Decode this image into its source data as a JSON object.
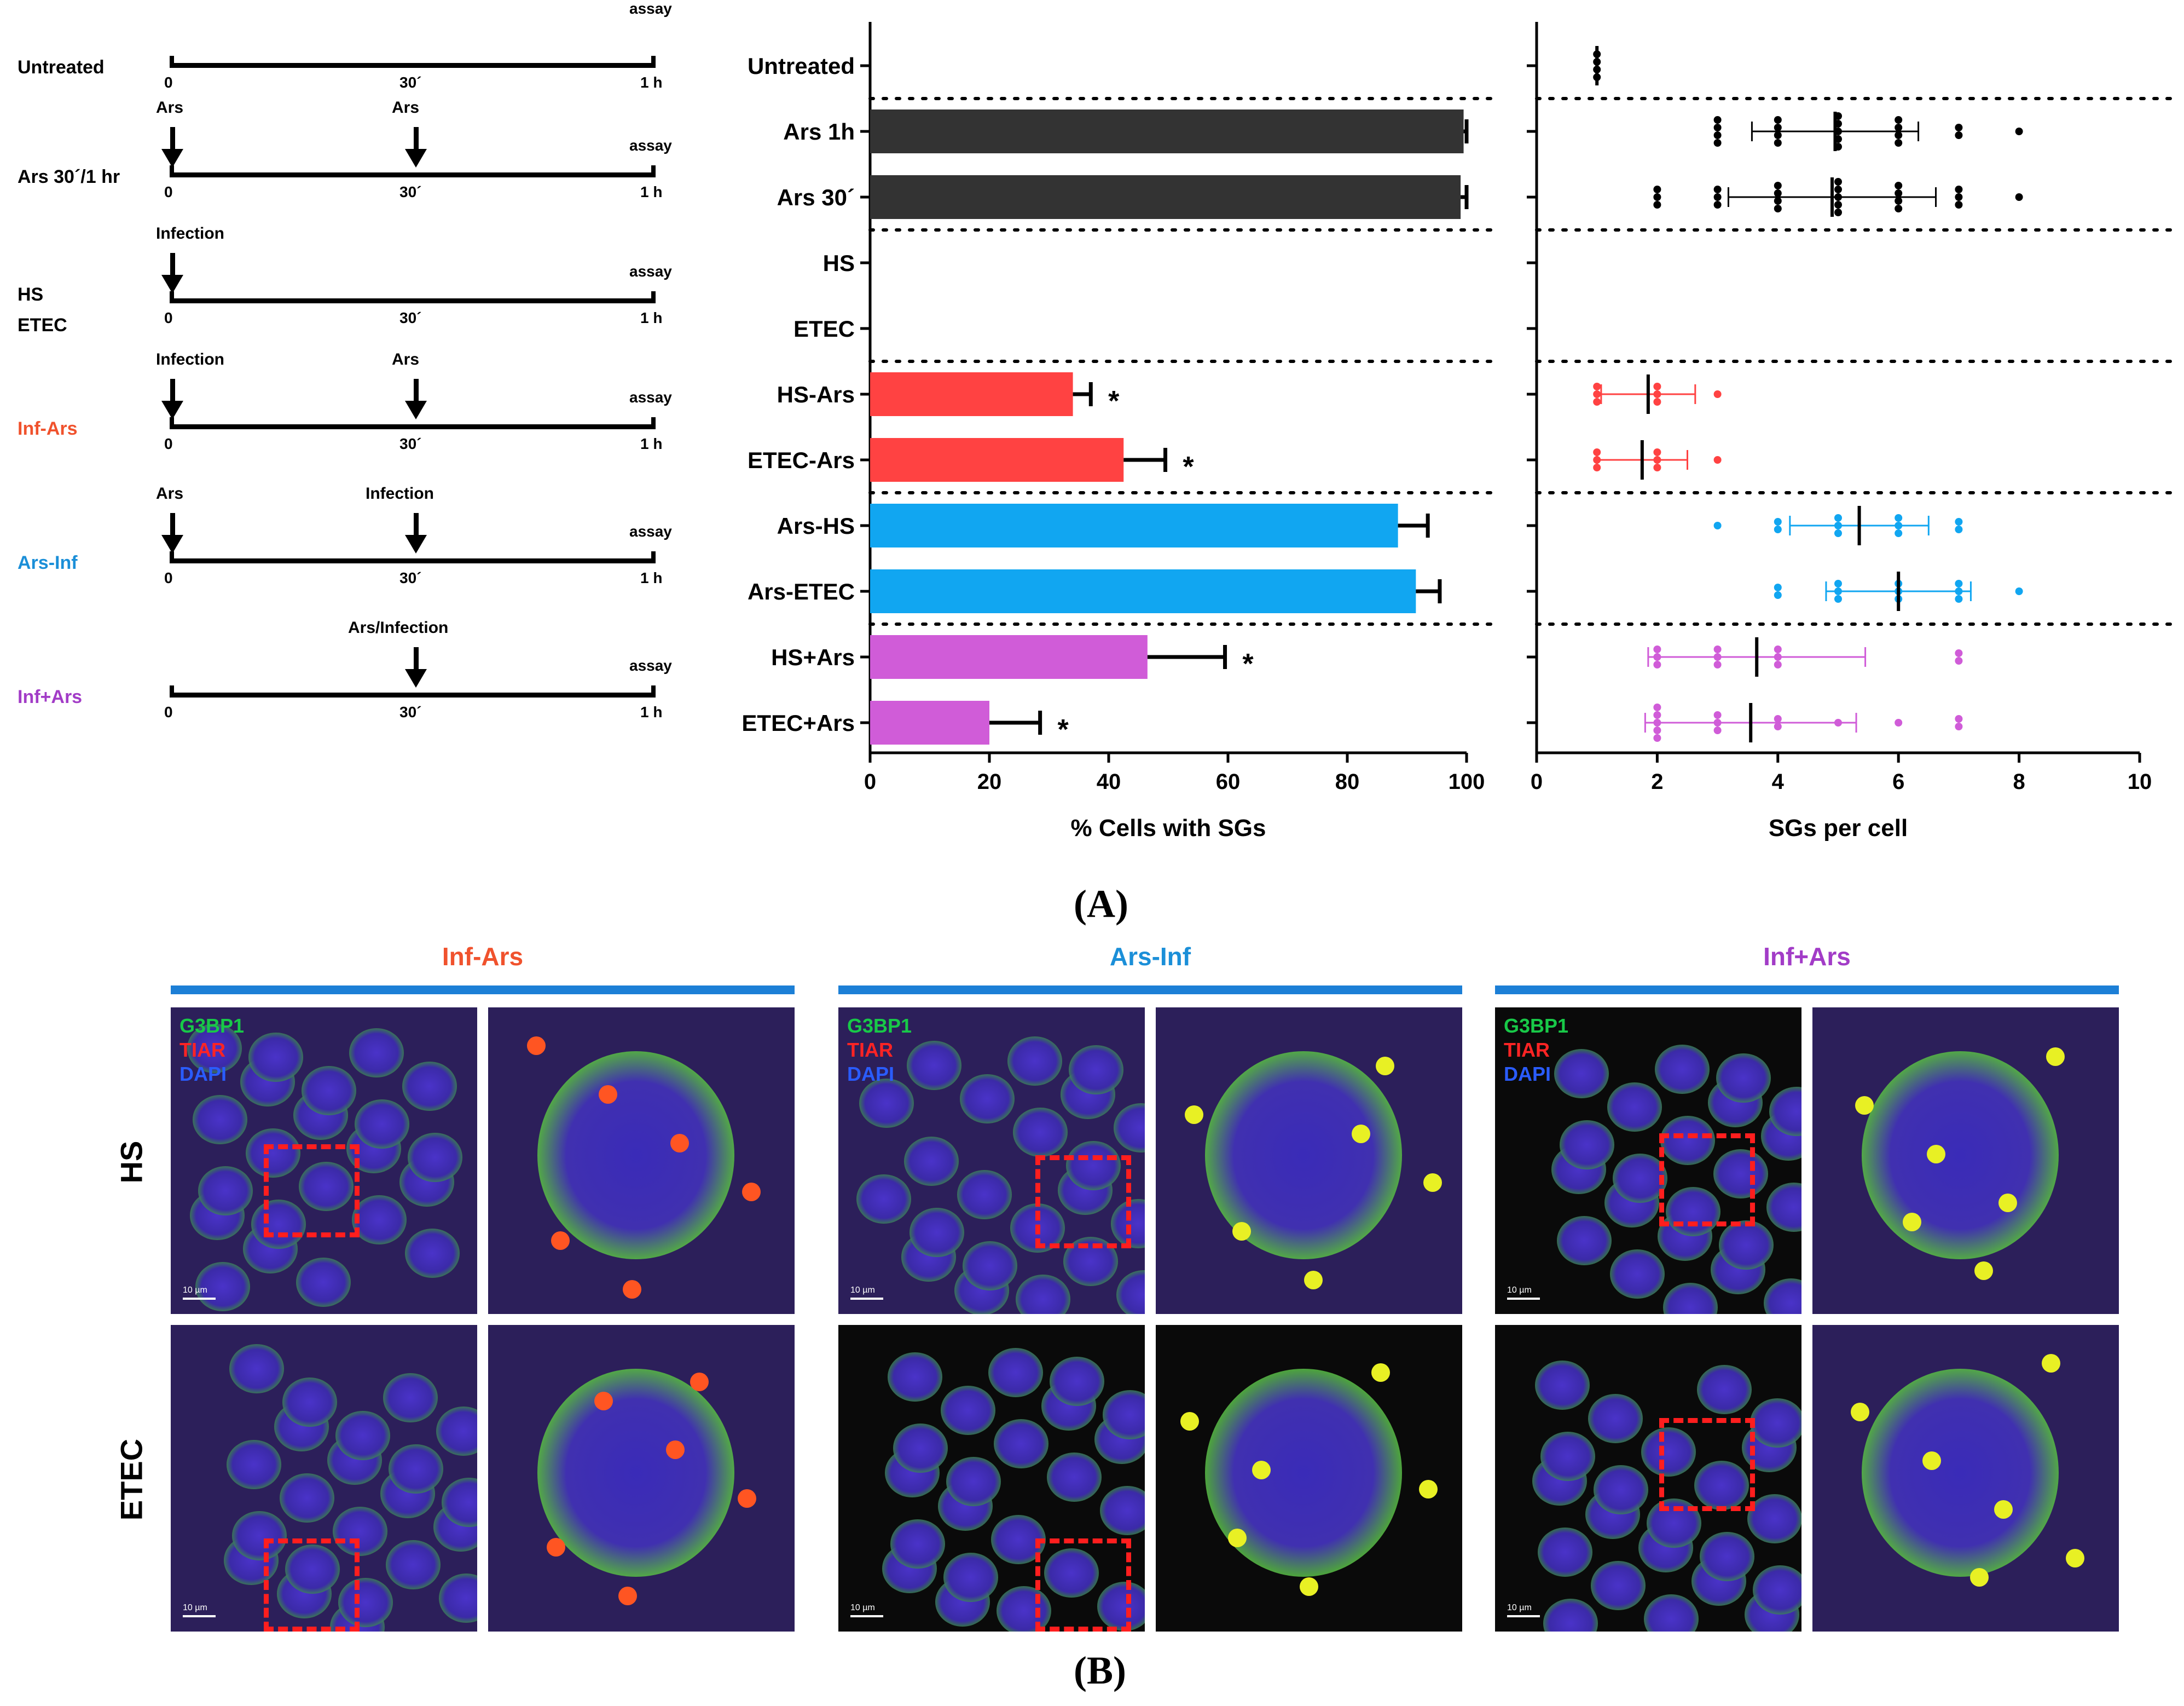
{
  "timelines": [
    {
      "label": "Untreated",
      "color": "#000000",
      "ticks": [
        "0",
        "30´",
        "1 h"
      ],
      "assay": "assay",
      "arrows": []
    },
    {
      "label": "Ars 30´/1 hr",
      "color": "#000000",
      "ticks": [
        "0",
        "30´",
        "1 h"
      ],
      "assay": "assay",
      "arrows": [
        {
          "at": "start",
          "text": "Ars"
        },
        {
          "at": "mid",
          "text": "Ars"
        }
      ]
    },
    {
      "label": "HS\nETEC",
      "color": "#000000",
      "ticks": [
        "0",
        "30´",
        "1 h"
      ],
      "assay": "assay",
      "arrows": [
        {
          "at": "start",
          "text": "Infection"
        }
      ]
    },
    {
      "label": "Inf-Ars",
      "color": "#f0522d",
      "ticks": [
        "0",
        "30´",
        "1 h"
      ],
      "assay": "assay",
      "arrows": [
        {
          "at": "start",
          "text": "Infection"
        },
        {
          "at": "mid",
          "text": "Ars"
        }
      ]
    },
    {
      "label": "Ars-Inf",
      "color": "#1b8fd8",
      "ticks": [
        "0",
        "30´",
        "1 h"
      ],
      "assay": "assay",
      "arrows": [
        {
          "at": "start",
          "text": "Ars"
        },
        {
          "at": "mid",
          "text": "Infection"
        }
      ]
    },
    {
      "label": "Inf+Ars",
      "color": "#a23cc7",
      "ticks": [
        "0",
        "30´",
        "1 h"
      ],
      "assay": "assay",
      "arrows": [
        {
          "at": "mid",
          "text": "Ars/Infection"
        }
      ]
    }
  ],
  "chart_data": [
    {
      "type": "bar",
      "orientation": "horizontal",
      "categories": [
        "Untreated",
        "Ars 1h",
        "Ars 30´",
        "HS",
        "ETEC",
        "HS-Ars",
        "ETEC-Ars",
        "Ars-HS",
        "Ars-ETEC",
        "HS+Ars",
        "ETEC+Ars"
      ],
      "values": [
        0,
        99.5,
        99,
        0,
        0,
        34,
        42.5,
        88.5,
        91.5,
        46.5,
        20
      ],
      "errors": [
        0,
        0.5,
        1,
        0,
        0,
        3,
        7,
        5,
        4,
        13,
        8.5
      ],
      "significance": [
        "",
        "",
        "",
        "",
        "",
        "*",
        "*",
        "",
        "",
        "*",
        "*"
      ],
      "colors": [
        "#333333",
        "#333333",
        "#333333",
        "#333333",
        "#333333",
        "#ff4242",
        "#ff4242",
        "#11a6f1",
        "#11a6f1",
        "#d05cd8",
        "#d05cd8"
      ],
      "group_separators_after": [
        0,
        2,
        4,
        6,
        8
      ],
      "xlabel": "% Cells with SGs",
      "xlim": [
        0,
        100
      ],
      "xticks": [
        0,
        20,
        40,
        60,
        80,
        100
      ]
    },
    {
      "type": "scatter",
      "categories": [
        "Untreated",
        "Ars 1h",
        "Ars 30´",
        "HS",
        "ETEC",
        "HS-Ars",
        "ETEC-Ars",
        "Ars-HS",
        "Ars-ETEC",
        "HS+Ars",
        "ETEC+Ars"
      ],
      "colors": [
        "#000000",
        "#000000",
        "#000000",
        "#000000",
        "#000000",
        "#ff4242",
        "#ff4242",
        "#11a6f1",
        "#11a6f1",
        "#d05cd8",
        "#d05cd8"
      ],
      "points": [
        [
          [
            1,
            4
          ]
        ],
        [
          [
            3,
            4
          ],
          [
            4,
            4
          ],
          [
            5,
            5
          ],
          [
            6,
            4
          ],
          [
            7,
            2
          ],
          [
            8,
            1
          ]
        ],
        [
          [
            2,
            3
          ],
          [
            3,
            3
          ],
          [
            4,
            4
          ],
          [
            5,
            5
          ],
          [
            6,
            4
          ],
          [
            7,
            3
          ],
          [
            8,
            1
          ]
        ],
        [],
        [],
        [
          [
            1,
            3
          ],
          [
            2,
            3
          ],
          [
            3,
            1
          ]
        ],
        [
          [
            1,
            3
          ],
          [
            2,
            3
          ],
          [
            3,
            1
          ]
        ],
        [
          [
            3,
            1
          ],
          [
            4,
            2
          ],
          [
            5,
            3
          ],
          [
            6,
            3
          ],
          [
            7,
            2
          ]
        ],
        [
          [
            4,
            2
          ],
          [
            5,
            3
          ],
          [
            6,
            3
          ],
          [
            7,
            3
          ],
          [
            8,
            1
          ]
        ],
        [
          [
            2,
            3
          ],
          [
            3,
            3
          ],
          [
            4,
            3
          ],
          [
            7,
            2
          ]
        ],
        [
          [
            2,
            5
          ],
          [
            3,
            3
          ],
          [
            4,
            2
          ],
          [
            5,
            1
          ],
          [
            6,
            1
          ],
          [
            7,
            2
          ]
        ]
      ],
      "means": [
        1,
        4.95,
        4.9,
        null,
        null,
        1.85,
        1.75,
        5.35,
        6.0,
        3.65,
        3.55
      ],
      "sds": [
        0,
        1.38,
        1.72,
        null,
        null,
        0.78,
        0.75,
        1.15,
        1.2,
        1.8,
        1.75
      ],
      "group_separators_after": [
        0,
        2,
        4,
        6,
        8
      ],
      "xlabel": "SGs per cell",
      "xlim": [
        0,
        10
      ],
      "xticks": [
        0,
        2,
        4,
        6,
        8,
        10
      ]
    }
  ],
  "panel_labels": {
    "a": "(A)",
    "b": "(B)"
  },
  "micrographs": {
    "groups": [
      {
        "title": "Inf-Ars",
        "color": "#f0522d"
      },
      {
        "title": "Ars-Inf",
        "color": "#1b8fd8"
      },
      {
        "title": "Inf+Ars",
        "color": "#a23cc7"
      }
    ],
    "rows": [
      "HS",
      "ETEC"
    ],
    "channels": [
      {
        "name": "G3BP1",
        "color": "#18c948"
      },
      {
        "name": "TIAR",
        "color": "#ff2424"
      },
      {
        "name": "DAPI",
        "color": "#2a5cff"
      }
    ],
    "scale_label": "10 µm"
  }
}
